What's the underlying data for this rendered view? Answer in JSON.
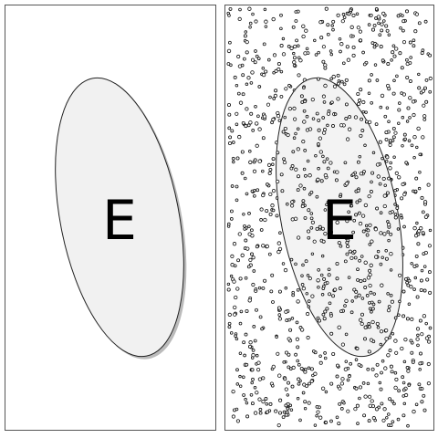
{
  "panels": [
    {
      "label": "E",
      "sample_points": false
    },
    {
      "label": "E",
      "sample_points": true
    }
  ],
  "colors": {
    "frame": "#555555",
    "ellipse_fill": "#f1f1f1",
    "ellipse_stroke": "#222222",
    "shadow": "#bbbbbb",
    "dot_stroke": "#111111"
  }
}
